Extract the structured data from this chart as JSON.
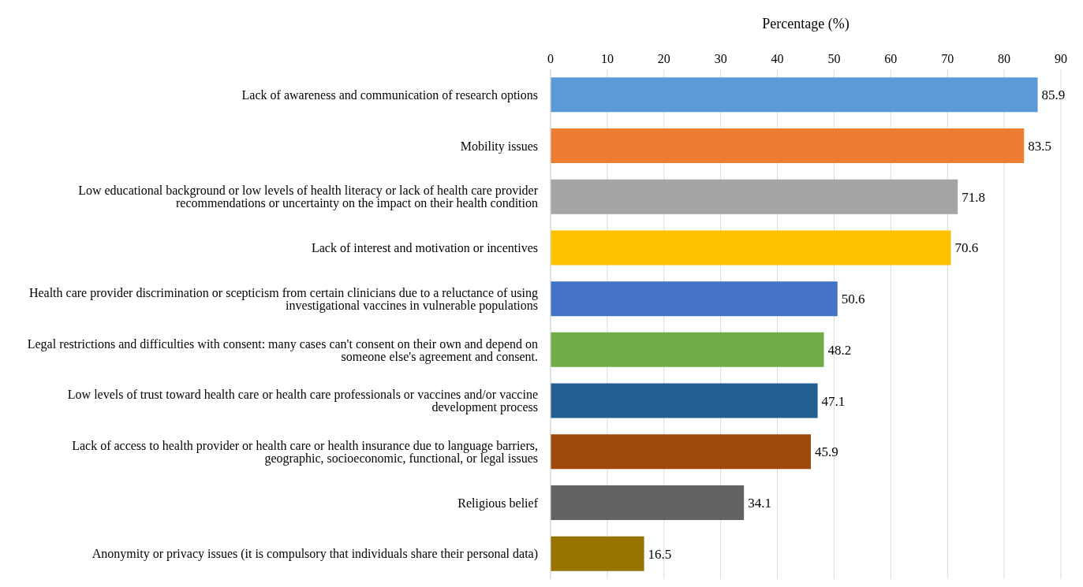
{
  "chart_data": {
    "type": "bar",
    "orientation": "horizontal",
    "xlabel": "Percentage (%)",
    "categories": [
      "Lack of awareness and communication of research options",
      "Mobility issues",
      "Low educational background or low levels of health literacy or lack of health care provider recommendations or uncertainty on the impact on their health condition",
      "Lack of interest and motivation or incentives",
      "Health care provider discrimination or scepticism from certain clinicians due to a reluctance of using investigational vaccines in vulnerable populations",
      "Legal restrictions and difficulties with consent: many cases can't consent on their own and depend on someone else's agreement and consent.",
      "Low levels of trust toward health care or health care professionals or vaccines and/or vaccine development process",
      "Lack of access to health provider or health care or health insurance due to language barriers, geographic, socioeconomic, functional, or legal issues",
      "Religious belief",
      "Anonymity or privacy issues (it is compulsory that individuals share their personal data)"
    ],
    "values": [
      85.9,
      83.5,
      71.8,
      70.6,
      50.6,
      48.2,
      47.1,
      45.9,
      34.1,
      16.5
    ],
    "colors": [
      "#5b9bd5",
      "#ed7d31",
      "#a5a5a5",
      "#ffc000",
      "#4472c4",
      "#70ad47",
      "#255e91",
      "#9e480e",
      "#636363",
      "#997300"
    ],
    "xlim": [
      0,
      90
    ],
    "xticks": [
      0,
      10,
      20,
      30,
      40,
      50,
      60,
      70,
      80,
      90
    ],
    "grid": "x",
    "data_labels": true
  }
}
